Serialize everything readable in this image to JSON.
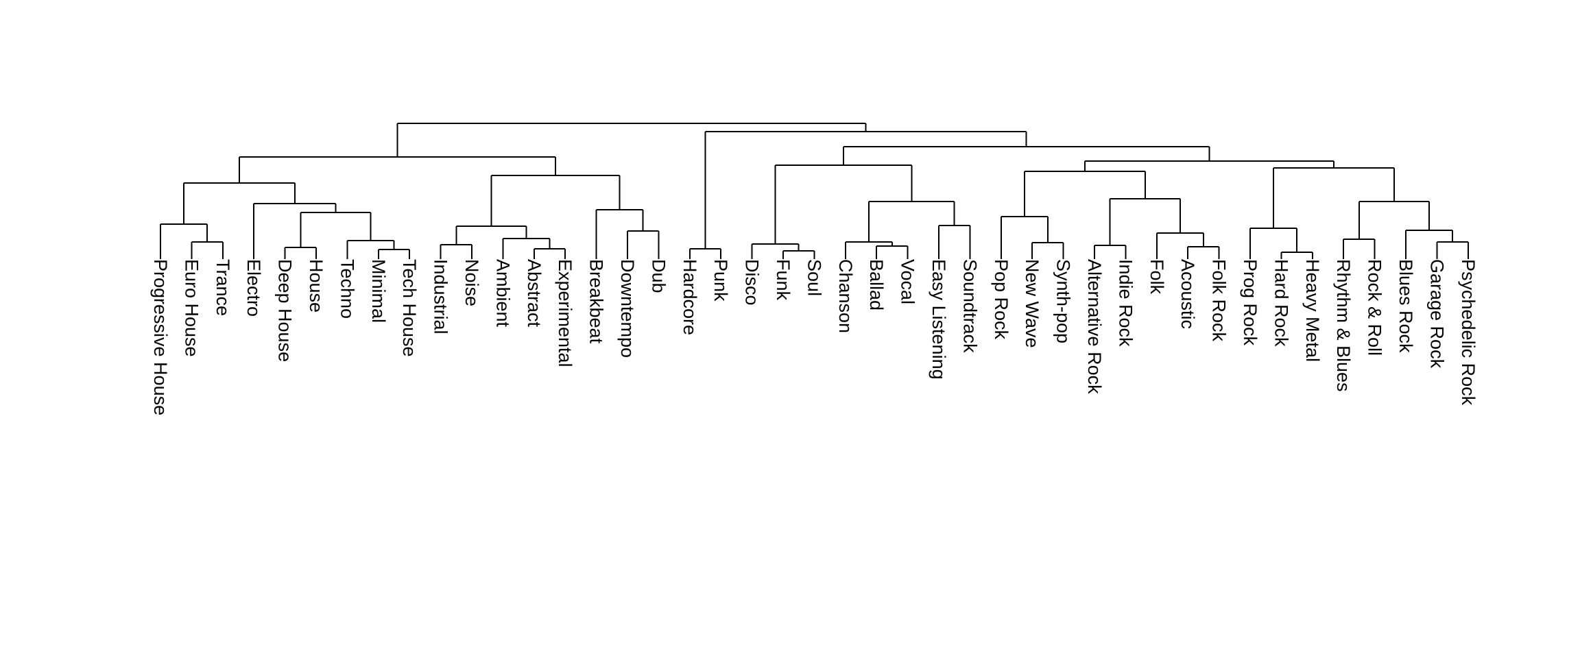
{
  "dendrogram": {
    "leaves": [
      "Progressive House",
      "Euro House",
      "Trance",
      "Electro",
      "Deep House",
      "House",
      "Techno",
      "Minimal",
      "Tech House",
      "Industrial",
      "Noise",
      "Ambient",
      "Abstract",
      "Experimental",
      "Breakbeat",
      "Downtempo",
      "Dub",
      "Hardcore",
      "Punk",
      "Disco",
      "Funk",
      "Soul",
      "Chanson",
      "Ballad",
      "Vocal",
      "Easy Listening",
      "Soundtrack",
      "Pop Rock",
      "New Wave",
      "Synth-pop",
      "Alternative Rock",
      "Indie Rock",
      "Folk",
      "Acoustic",
      "Folk Rock",
      "Prog Rock",
      "Hard Rock",
      "Heavy Metal",
      "Rhythm & Blues",
      "Rock & Roll",
      "Blues Rock",
      "Garage Rock",
      "Psychedelic Rock"
    ]
  }
}
